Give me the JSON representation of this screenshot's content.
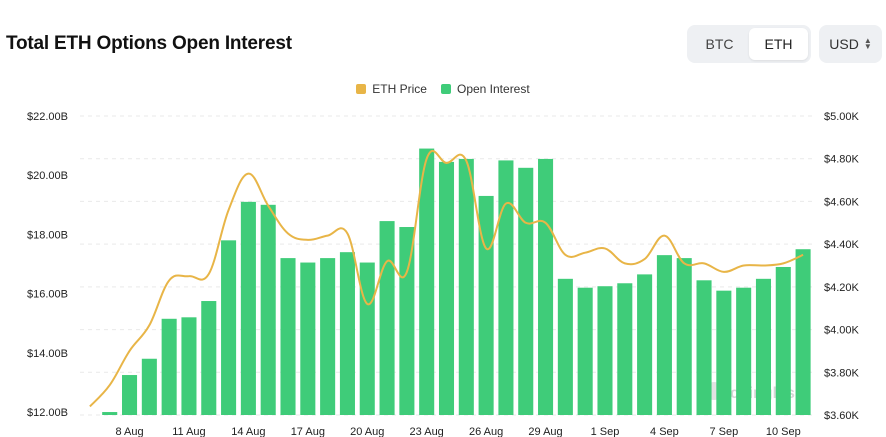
{
  "header": {
    "title": "Total ETH Options Open Interest",
    "asset_options": [
      "BTC",
      "ETH"
    ],
    "selected_asset": "ETH",
    "currency": "USD"
  },
  "legend": {
    "price_label": "ETH Price",
    "oi_label": "Open Interest"
  },
  "watermark": "coinglass",
  "colors": {
    "price": "#e8b547",
    "oi": "#3fcc79",
    "grid": "#e9e9e9"
  },
  "chart_data": {
    "type": "bar",
    "title": "Total ETH Options Open Interest",
    "x_ticks": [
      "8 Aug",
      "11 Aug",
      "14 Aug",
      "17 Aug",
      "20 Aug",
      "23 Aug",
      "26 Aug",
      "29 Aug",
      "1 Sep",
      "4 Sep",
      "7 Sep",
      "10 Sep"
    ],
    "x_tick_index": [
      2,
      5,
      8,
      11,
      14,
      17,
      20,
      23,
      26,
      29,
      32,
      35
    ],
    "y_left": {
      "ticks": [
        "$12.00B",
        "$14.00B",
        "$16.00B",
        "$18.00B",
        "$20.00B",
        "$22.00B"
      ],
      "tick_values": [
        12,
        14,
        16,
        18,
        20,
        22
      ],
      "lim": [
        11.9,
        22.0
      ],
      "unit": "B USD"
    },
    "y_right": {
      "ticks": [
        "$3.60K",
        "$3.80K",
        "$4.00K",
        "$4.20K",
        "$4.40K",
        "$4.60K",
        "$4.80K",
        "$5.00K"
      ],
      "tick_values": [
        3.6,
        3.8,
        4.0,
        4.2,
        4.4,
        4.6,
        4.8,
        5.0
      ],
      "lim": [
        3.6,
        5.0
      ],
      "unit": "K USD"
    },
    "grid": true,
    "legend_position": "top-center",
    "series": [
      {
        "name": "Open Interest",
        "kind": "bar",
        "axis": "left",
        "values": [
          11.75,
          12.0,
          13.25,
          13.8,
          15.15,
          15.2,
          15.75,
          17.8,
          19.1,
          19.0,
          17.2,
          17.05,
          17.2,
          17.4,
          17.05,
          18.45,
          18.25,
          20.9,
          20.45,
          20.55,
          19.3,
          20.5,
          20.25,
          20.55,
          16.5,
          16.2,
          16.25,
          16.35,
          16.65,
          17.3,
          17.2,
          16.45,
          16.1,
          16.2,
          16.5,
          16.9,
          17.5
        ]
      },
      {
        "name": "ETH Price",
        "kind": "line",
        "axis": "right",
        "values": [
          3.64,
          3.74,
          3.9,
          4.02,
          4.23,
          4.25,
          4.26,
          4.56,
          4.73,
          4.58,
          4.45,
          4.42,
          4.44,
          4.45,
          4.12,
          4.32,
          4.27,
          4.8,
          4.78,
          4.79,
          4.38,
          4.59,
          4.5,
          4.5,
          4.35,
          4.36,
          4.38,
          4.31,
          4.33,
          4.44,
          4.31,
          4.31,
          4.27,
          4.3,
          4.3,
          4.31,
          4.35
        ]
      }
    ]
  }
}
